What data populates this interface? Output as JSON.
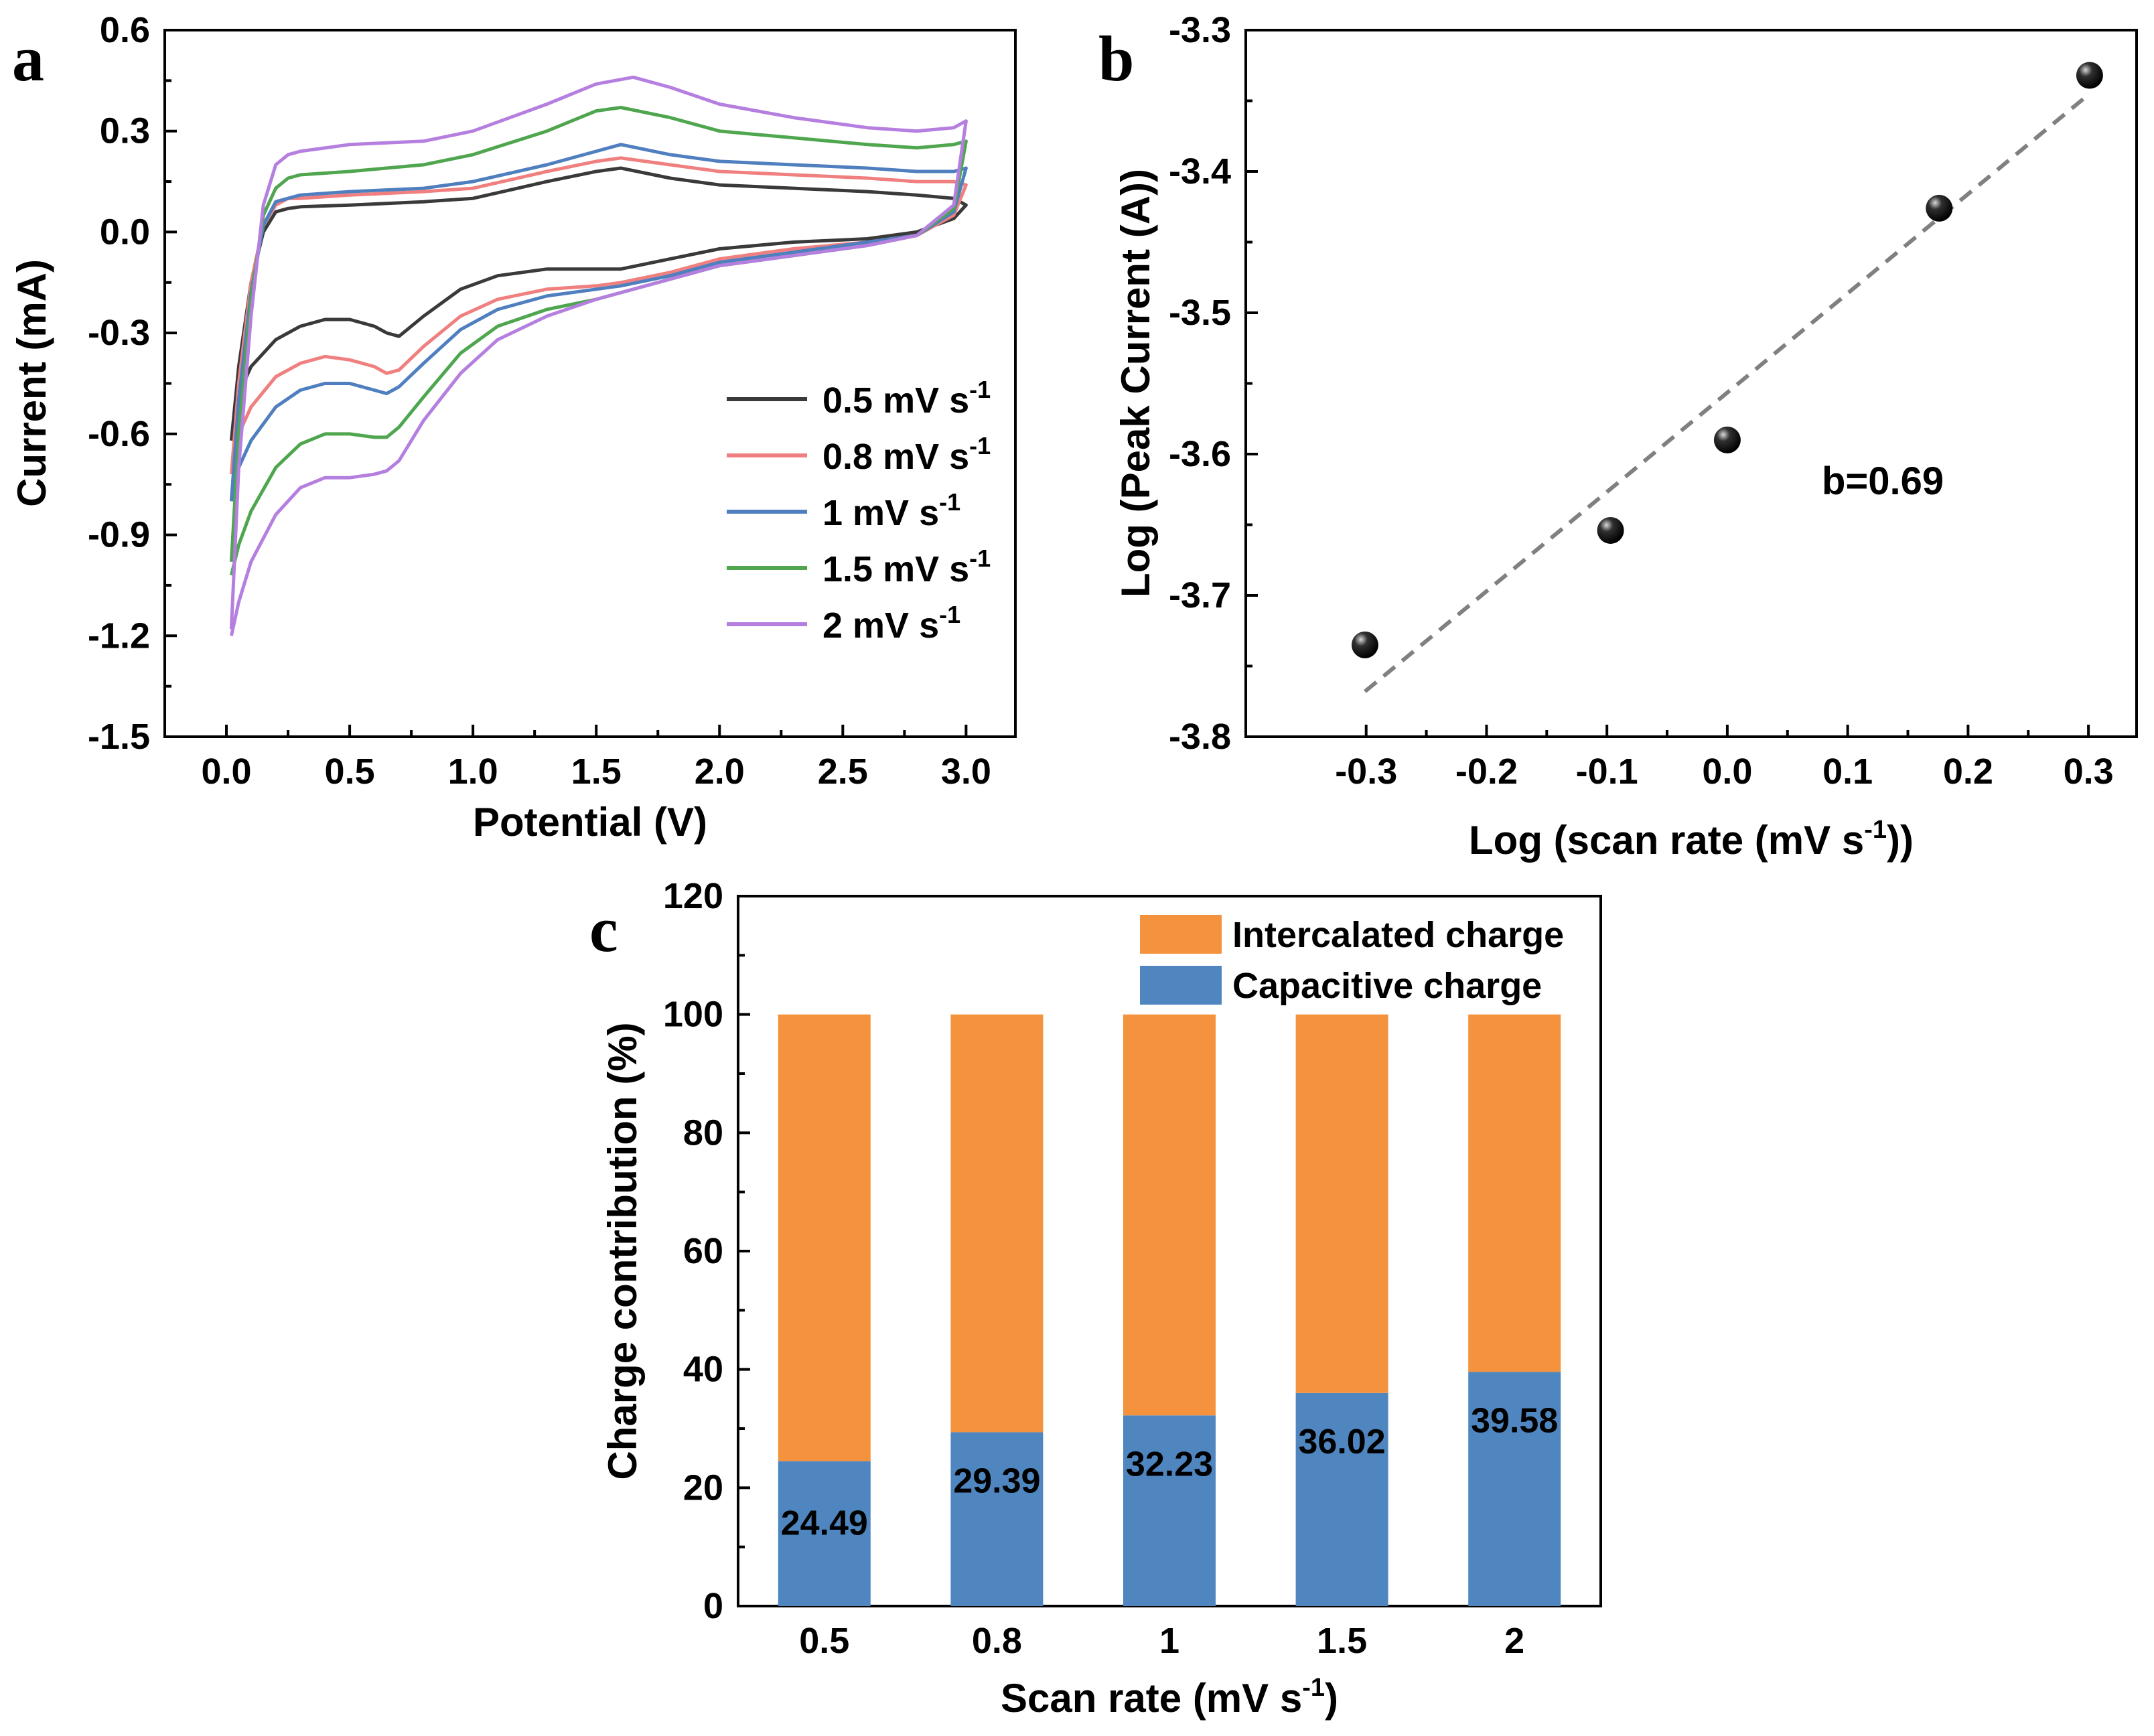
{
  "chart_data": [
    {
      "panel": "a",
      "type": "line",
      "xlabel": "Potential (V)",
      "ylabel": "Current (mA)",
      "xlim": [
        -0.25,
        3.2
      ],
      "ylim": [
        -1.5,
        0.6
      ],
      "xticks": [
        "0.0",
        "0.5",
        "1.0",
        "1.5",
        "2.0",
        "2.5",
        "3.0"
      ],
      "yticks": [
        "0.6",
        "0.3",
        "0.0",
        "-0.3",
        "-0.6",
        "-0.9",
        "-1.2",
        "-1.5"
      ],
      "legend": "center-right",
      "series": [
        {
          "name": "0.5 mV s",
          "sup": "-1",
          "color": "#3a3a3a",
          "oxidation": {
            "x": [
              0.02,
              0.05,
              0.1,
              0.15,
              0.2,
              0.25,
              0.3,
              0.5,
              0.8,
              1.0,
              1.3,
              1.5,
              1.6,
              1.8,
              2.0,
              2.3,
              2.6,
              2.8,
              2.95,
              3.0
            ],
            "y": [
              -0.62,
              -0.4,
              -0.15,
              0.0,
              0.06,
              0.07,
              0.075,
              0.08,
              0.09,
              0.1,
              0.15,
              0.18,
              0.19,
              0.16,
              0.14,
              0.13,
              0.12,
              0.11,
              0.1,
              0.08
            ]
          },
          "reduction": {
            "x": [
              3.0,
              2.95,
              2.8,
              2.6,
              2.3,
              2.0,
              1.8,
              1.6,
              1.5,
              1.3,
              1.1,
              0.95,
              0.8,
              0.7,
              0.65,
              0.6,
              0.5,
              0.4,
              0.3,
              0.2,
              0.1,
              0.05,
              0.02
            ],
            "y": [
              0.08,
              0.04,
              0.0,
              -0.02,
              -0.03,
              -0.05,
              -0.08,
              -0.11,
              -0.11,
              -0.11,
              -0.13,
              -0.17,
              -0.25,
              -0.31,
              -0.3,
              -0.28,
              -0.26,
              -0.26,
              -0.28,
              -0.32,
              -0.4,
              -0.48,
              -0.62
            ]
          }
        },
        {
          "name": "0.8 mV s",
          "sup": "-1",
          "color": "#f07f7f",
          "oxidation": {
            "x": [
              0.02,
              0.05,
              0.1,
              0.15,
              0.2,
              0.25,
              0.3,
              0.5,
              0.8,
              1.0,
              1.3,
              1.5,
              1.6,
              1.8,
              2.0,
              2.3,
              2.6,
              2.8,
              2.95,
              3.0
            ],
            "y": [
              -0.72,
              -0.45,
              -0.15,
              0.02,
              0.08,
              0.1,
              0.1,
              0.11,
              0.12,
              0.13,
              0.18,
              0.21,
              0.22,
              0.2,
              0.18,
              0.17,
              0.16,
              0.15,
              0.15,
              0.14
            ]
          },
          "reduction": {
            "x": [
              3.0,
              2.95,
              2.8,
              2.6,
              2.3,
              2.0,
              1.8,
              1.6,
              1.5,
              1.3,
              1.1,
              0.95,
              0.8,
              0.7,
              0.65,
              0.6,
              0.5,
              0.4,
              0.3,
              0.2,
              0.1,
              0.05,
              0.02
            ],
            "y": [
              0.14,
              0.05,
              -0.01,
              -0.03,
              -0.05,
              -0.08,
              -0.12,
              -0.15,
              -0.16,
              -0.17,
              -0.2,
              -0.25,
              -0.34,
              -0.41,
              -0.42,
              -0.4,
              -0.38,
              -0.37,
              -0.39,
              -0.43,
              -0.52,
              -0.6,
              -0.72
            ]
          }
        },
        {
          "name": "1 mV s",
          "sup": "-1",
          "color": "#4f7fbf",
          "oxidation": {
            "x": [
              0.02,
              0.05,
              0.1,
              0.15,
              0.2,
              0.25,
              0.3,
              0.5,
              0.8,
              1.0,
              1.3,
              1.5,
              1.6,
              1.8,
              2.0,
              2.3,
              2.6,
              2.8,
              2.95,
              3.0
            ],
            "y": [
              -0.8,
              -0.5,
              -0.18,
              0.02,
              0.09,
              0.1,
              0.11,
              0.12,
              0.13,
              0.15,
              0.2,
              0.24,
              0.26,
              0.23,
              0.21,
              0.2,
              0.19,
              0.18,
              0.18,
              0.19
            ]
          },
          "reduction": {
            "x": [
              3.0,
              2.95,
              2.8,
              2.6,
              2.3,
              2.0,
              1.8,
              1.6,
              1.5,
              1.3,
              1.1,
              0.95,
              0.8,
              0.7,
              0.65,
              0.6,
              0.5,
              0.4,
              0.3,
              0.2,
              0.1,
              0.05,
              0.02
            ],
            "y": [
              0.19,
              0.06,
              -0.01,
              -0.03,
              -0.06,
              -0.09,
              -0.13,
              -0.16,
              -0.17,
              -0.19,
              -0.23,
              -0.29,
              -0.39,
              -0.46,
              -0.48,
              -0.47,
              -0.45,
              -0.45,
              -0.47,
              -0.52,
              -0.62,
              -0.7,
              -0.8
            ]
          }
        },
        {
          "name": "1.5 mV s",
          "sup": "-1",
          "color": "#4fa64f",
          "oxidation": {
            "x": [
              0.02,
              0.05,
              0.1,
              0.15,
              0.2,
              0.25,
              0.3,
              0.5,
              0.8,
              1.0,
              1.3,
              1.5,
              1.6,
              1.8,
              2.0,
              2.3,
              2.6,
              2.8,
              2.95,
              3.0
            ],
            "y": [
              -0.98,
              -0.6,
              -0.2,
              0.05,
              0.13,
              0.16,
              0.17,
              0.18,
              0.2,
              0.23,
              0.3,
              0.36,
              0.37,
              0.34,
              0.3,
              0.28,
              0.26,
              0.25,
              0.26,
              0.27
            ]
          },
          "reduction": {
            "x": [
              3.0,
              2.95,
              2.8,
              2.6,
              2.3,
              2.0,
              1.8,
              1.6,
              1.5,
              1.3,
              1.1,
              0.95,
              0.8,
              0.7,
              0.65,
              0.6,
              0.5,
              0.4,
              0.3,
              0.2,
              0.1,
              0.05,
              0.02
            ],
            "y": [
              0.27,
              0.07,
              -0.01,
              -0.04,
              -0.07,
              -0.1,
              -0.14,
              -0.18,
              -0.2,
              -0.23,
              -0.28,
              -0.36,
              -0.49,
              -0.58,
              -0.61,
              -0.61,
              -0.6,
              -0.6,
              -0.63,
              -0.7,
              -0.83,
              -0.93,
              -1.02
            ]
          }
        },
        {
          "name": "2 mV s",
          "sup": "-1",
          "color": "#b57fe0",
          "oxidation": {
            "x": [
              0.02,
              0.05,
              0.1,
              0.15,
              0.2,
              0.25,
              0.3,
              0.5,
              0.8,
              1.0,
              1.3,
              1.5,
              1.65,
              1.8,
              2.0,
              2.3,
              2.6,
              2.8,
              2.95,
              3.0
            ],
            "y": [
              -1.18,
              -0.7,
              -0.25,
              0.08,
              0.2,
              0.23,
              0.24,
              0.26,
              0.27,
              0.3,
              0.38,
              0.44,
              0.46,
              0.43,
              0.38,
              0.34,
              0.31,
              0.3,
              0.31,
              0.33
            ]
          },
          "reduction": {
            "x": [
              3.0,
              2.95,
              2.8,
              2.6,
              2.3,
              2.0,
              1.8,
              1.6,
              1.5,
              1.3,
              1.1,
              0.95,
              0.8,
              0.7,
              0.65,
              0.6,
              0.5,
              0.4,
              0.3,
              0.2,
              0.1,
              0.05,
              0.02
            ],
            "y": [
              0.33,
              0.08,
              -0.01,
              -0.04,
              -0.07,
              -0.1,
              -0.14,
              -0.18,
              -0.2,
              -0.25,
              -0.32,
              -0.42,
              -0.56,
              -0.68,
              -0.71,
              -0.72,
              -0.73,
              -0.73,
              -0.76,
              -0.84,
              -0.98,
              -1.1,
              -1.2
            ]
          }
        }
      ]
    },
    {
      "panel": "b",
      "type": "scatter",
      "xlabel": "Log (scan rate (mV s",
      "xlabel_sup": "-1",
      "xlabel_end": "))",
      "ylabel": "Log (Peak Current (A))",
      "xlim": [
        -0.4,
        0.34
      ],
      "ylim": [
        -3.8,
        -3.3
      ],
      "xticks": [
        "-0.3",
        "-0.2",
        "-0.1",
        "0.0",
        "0.1",
        "0.2",
        "0.3"
      ],
      "yticks": [
        "-3.3",
        "-3.4",
        "-3.5",
        "-3.6",
        "-3.7",
        "-3.8"
      ],
      "x": [
        -0.301,
        -0.097,
        0.0,
        0.176,
        0.301
      ],
      "y": [
        -3.735,
        -3.654,
        -3.59,
        -3.426,
        -3.332
      ],
      "fit": {
        "x": [
          -0.301,
          0.301
        ],
        "y": [
          -3.768,
          -3.345
        ]
      },
      "annotation": "b=0.69"
    },
    {
      "panel": "c",
      "type": "bar",
      "stacked": true,
      "xlabel": "Scan rate (mV s",
      "xlabel_sup": "-1",
      "xlabel_end": ")",
      "ylabel": "Charge contribution (%)",
      "ylim": [
        0,
        120
      ],
      "yticks": [
        "120",
        "100",
        "80",
        "60",
        "40",
        "20",
        "0"
      ],
      "categories": [
        "0.5",
        "0.8",
        "1",
        "1.5",
        "2"
      ],
      "legend": "top-right",
      "series": [
        {
          "name": "Intercalated charge",
          "color": "#f5923e",
          "values": [
            75.51,
            70.61,
            67.77,
            63.98,
            60.42
          ]
        },
        {
          "name": "Capacitive charge",
          "color": "#4f86c0",
          "values": [
            24.49,
            29.39,
            32.23,
            36.02,
            39.58
          ]
        }
      ],
      "data_labels": [
        "24.49",
        "29.39",
        "32.23",
        "36.02",
        "39.58"
      ]
    }
  ]
}
